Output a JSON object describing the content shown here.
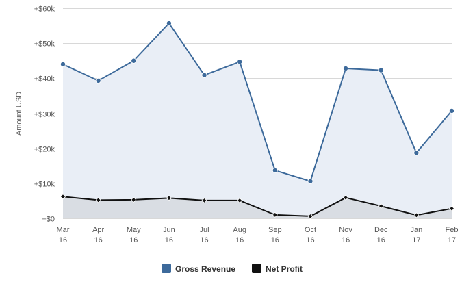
{
  "chart_data": {
    "type": "area",
    "ylabel": "Amount USD",
    "xlabel": "",
    "categories": [
      [
        "Mar",
        "16"
      ],
      [
        "Apr",
        "16"
      ],
      [
        "May",
        "16"
      ],
      [
        "Jun",
        "16"
      ],
      [
        "Jul",
        "16"
      ],
      [
        "Aug",
        "16"
      ],
      [
        "Sep",
        "16"
      ],
      [
        "Oct",
        "16"
      ],
      [
        "Nov",
        "16"
      ],
      [
        "Dec",
        "16"
      ],
      [
        "Jan",
        "17"
      ],
      [
        "Feb",
        "17"
      ]
    ],
    "ylim": [
      0,
      60000
    ],
    "yticks": [
      0,
      10000,
      20000,
      30000,
      40000,
      50000,
      60000
    ],
    "ytick_labels": [
      "+$0",
      "+$10k",
      "+$20k",
      "+$30k",
      "+$40k",
      "+$50k",
      "+$60k"
    ],
    "grid": true,
    "legend_position": "bottom-center",
    "series": [
      {
        "name": "Gross Revenue",
        "color": "#3d6a9b",
        "fill": "#e9eef6",
        "marker": "circle",
        "values": [
          44000,
          39300,
          45000,
          55700,
          40900,
          44700,
          13700,
          10600,
          42800,
          42300,
          18700,
          30700
        ]
      },
      {
        "name": "Net Profit",
        "color": "#111111",
        "fill": "#d9dde3",
        "marker": "diamond",
        "values": [
          6200,
          5200,
          5300,
          5800,
          5100,
          5100,
          1000,
          600,
          5900,
          3500,
          900,
          2800
        ]
      }
    ]
  }
}
